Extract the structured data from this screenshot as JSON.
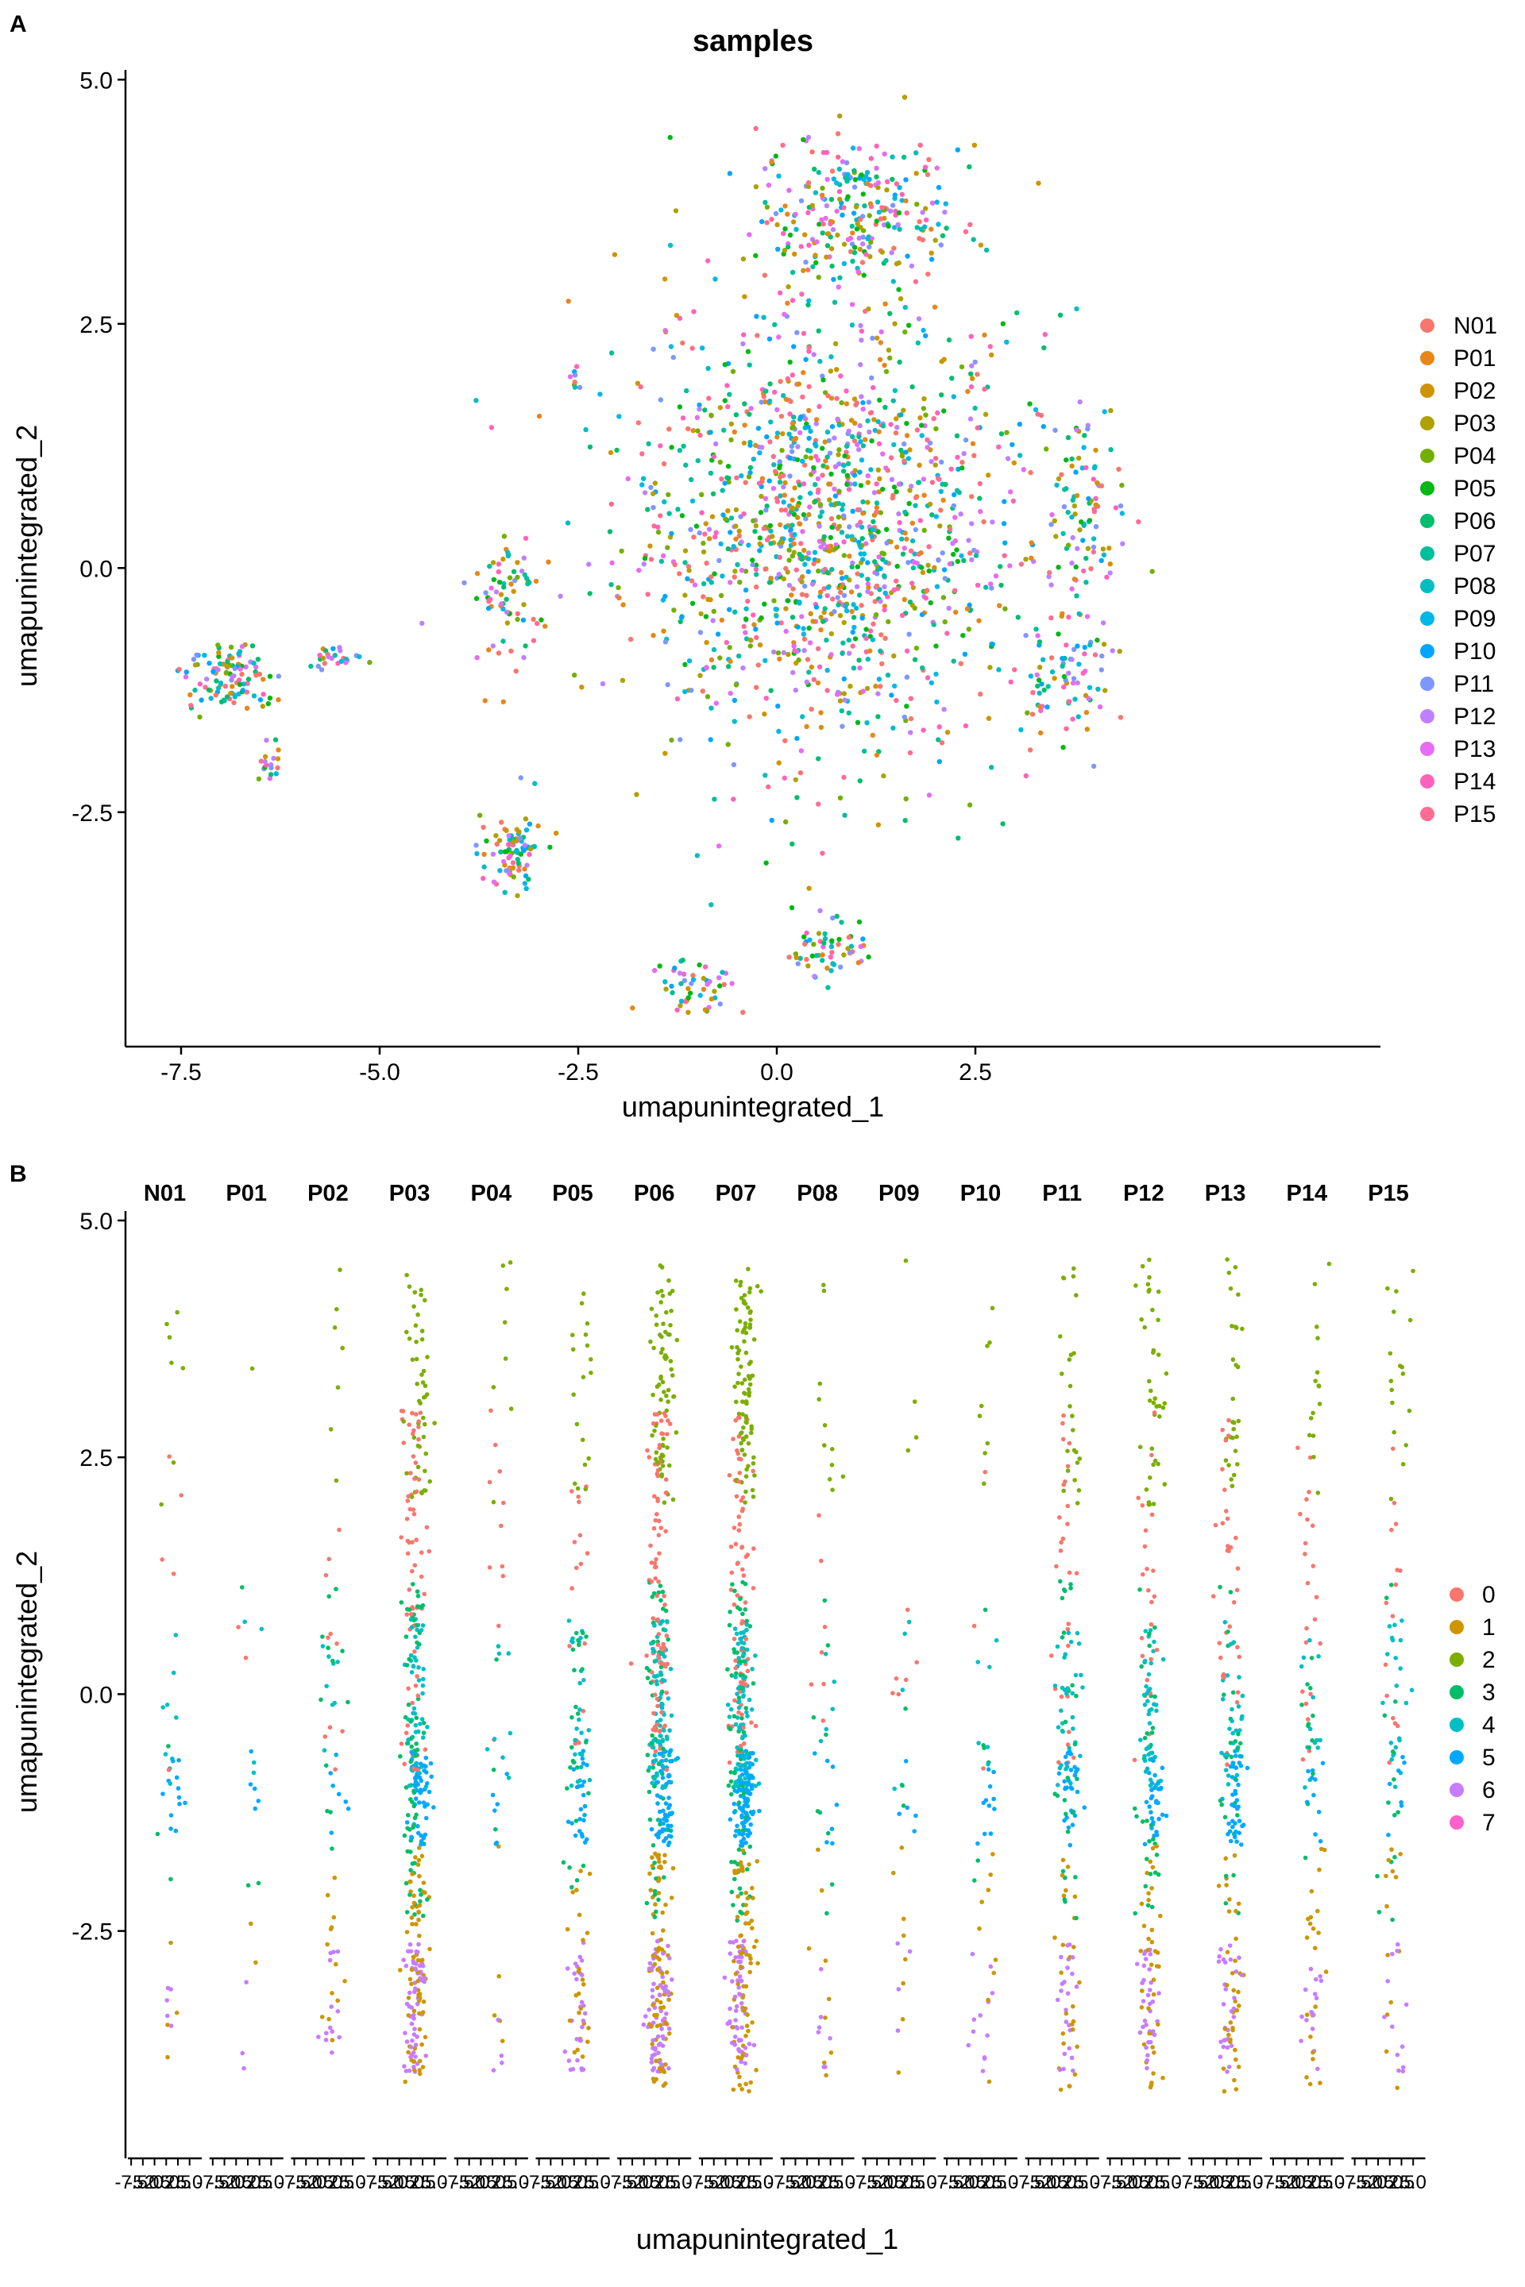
{
  "chart_data": [
    {
      "panel": "A",
      "type": "scatter",
      "title": "samples",
      "xlabel": "umapunintegrated_1",
      "ylabel": "umapunintegrated_2",
      "xlim": [
        -8.2,
        7.6
      ],
      "ylim": [
        -4.9,
        5.1
      ],
      "xticks": [
        -7.5,
        -5.0,
        -2.5,
        0.0,
        2.5
      ],
      "xtick_labels": [
        "-7.5",
        "-5.0",
        "-2.5",
        "0.0",
        "2.5"
      ],
      "yticks": [
        -2.5,
        0.0,
        2.5,
        5.0
      ],
      "ytick_labels": [
        "-2.5",
        "0.0",
        "2.5",
        "5.0"
      ],
      "grid": false,
      "legend_position": "right",
      "legend": [
        {
          "label": "N01",
          "color": "#F8766D"
        },
        {
          "label": "P01",
          "color": "#E7861B"
        },
        {
          "label": "P02",
          "color": "#CF9400"
        },
        {
          "label": "P03",
          "color": "#AFA100"
        },
        {
          "label": "P04",
          "color": "#72B000"
        },
        {
          "label": "P05",
          "color": "#00B813"
        },
        {
          "label": "P06",
          "color": "#00BE6D"
        },
        {
          "label": "P07",
          "color": "#00BF9C"
        },
        {
          "label": "P08",
          "color": "#00BDC2"
        },
        {
          "label": "P09",
          "color": "#00B8E5"
        },
        {
          "label": "P10",
          "color": "#00A5FF"
        },
        {
          "label": "P11",
          "color": "#7E96FF"
        },
        {
          "label": "P12",
          "color": "#BF80FF"
        },
        {
          "label": "P13",
          "color": "#E76BF3"
        },
        {
          "label": "P14",
          "color": "#FF62BC"
        },
        {
          "label": "P15",
          "color": "#FF6C91"
        }
      ],
      "clusters": [
        {
          "cx": 0.6,
          "cy": 0.4,
          "sx": 2.1,
          "sy": 1.9,
          "n": 1400
        },
        {
          "cx": 1.0,
          "cy": 3.6,
          "sx": 1.0,
          "sy": 0.7,
          "n": 280
        },
        {
          "cx": -3.4,
          "cy": -0.3,
          "sx": 0.35,
          "sy": 0.6,
          "n": 70
        },
        {
          "cx": -3.3,
          "cy": -2.9,
          "sx": 0.35,
          "sy": 0.35,
          "n": 90
        },
        {
          "cx": -1.0,
          "cy": -4.3,
          "sx": 0.4,
          "sy": 0.2,
          "n": 50
        },
        {
          "cx": 0.6,
          "cy": -3.9,
          "sx": 0.5,
          "sy": 0.3,
          "n": 60
        },
        {
          "cx": 3.9,
          "cy": 0.6,
          "sx": 0.35,
          "sy": 1.0,
          "n": 90
        },
        {
          "cx": 3.6,
          "cy": -1.1,
          "sx": 0.5,
          "sy": 0.6,
          "n": 80
        },
        {
          "cx": -6.9,
          "cy": -1.1,
          "sx": 0.45,
          "sy": 0.3,
          "n": 110
        },
        {
          "cx": -5.5,
          "cy": -0.95,
          "sx": 0.3,
          "sy": 0.1,
          "n": 25
        },
        {
          "cx": -6.4,
          "cy": -2.0,
          "sx": 0.12,
          "sy": 0.15,
          "n": 18
        },
        {
          "cx": -2.5,
          "cy": 1.9,
          "sx": 0.1,
          "sy": 0.1,
          "n": 8
        }
      ]
    },
    {
      "panel": "B",
      "type": "scatter",
      "xlabel": "umapunintegrated_1",
      "ylabel": "umapunintegrated_2",
      "xlim": [
        -8.2,
        7.6
      ],
      "ylim": [
        -4.9,
        5.1
      ],
      "yticks": [
        -2.5,
        0.0,
        2.5,
        5.0
      ],
      "ytick_labels": [
        "-2.5",
        "0.0",
        "2.5",
        "5.0"
      ],
      "facet_xticks": [
        -7.5,
        -5.0,
        -2.5,
        0.0,
        2.5,
        5.0
      ],
      "facet_xtick_labels": [
        "-7.5",
        "-5.0",
        "-2.5",
        "0.0",
        "2.5",
        "5.0"
      ],
      "facets": [
        "N01",
        "P01",
        "P02",
        "P03",
        "P04",
        "P05",
        "P06",
        "P07",
        "P08",
        "P09",
        "P10",
        "P11",
        "P12",
        "P13",
        "P14",
        "P15"
      ],
      "facet_density": [
        45,
        20,
        70,
        420,
        45,
        160,
        520,
        560,
        55,
        35,
        55,
        190,
        240,
        220,
        110,
        100
      ],
      "grid": false,
      "legend_position": "right",
      "legend": [
        {
          "label": "0",
          "color": "#F8766D"
        },
        {
          "label": "1",
          "color": "#CD9600"
        },
        {
          "label": "2",
          "color": "#7CAE00"
        },
        {
          "label": "3",
          "color": "#00BE67"
        },
        {
          "label": "4",
          "color": "#00BFC4"
        },
        {
          "label": "5",
          "color": "#00A9FF"
        },
        {
          "label": "6",
          "color": "#C77CFF"
        },
        {
          "label": "7",
          "color": "#FF61CC"
        }
      ],
      "cluster_y_ranges": [
        {
          "cluster": "0",
          "y": [
            -0.8,
            3.0
          ]
        },
        {
          "cluster": "1",
          "y": [
            -4.2,
            -1.6
          ]
        },
        {
          "cluster": "2",
          "y": [
            2.0,
            4.6
          ]
        },
        {
          "cluster": "3",
          "y": [
            -2.4,
            1.2
          ]
        },
        {
          "cluster": "4",
          "y": [
            -1.0,
            0.8
          ]
        },
        {
          "cluster": "5",
          "y": [
            -1.6,
            -0.6
          ]
        },
        {
          "cluster": "6",
          "y": [
            -4.0,
            -2.6
          ]
        },
        {
          "cluster": "7",
          "y": [
            -0.5,
            0.5
          ]
        }
      ]
    }
  ],
  "panels": {
    "a_label": "A",
    "b_label": "B"
  }
}
